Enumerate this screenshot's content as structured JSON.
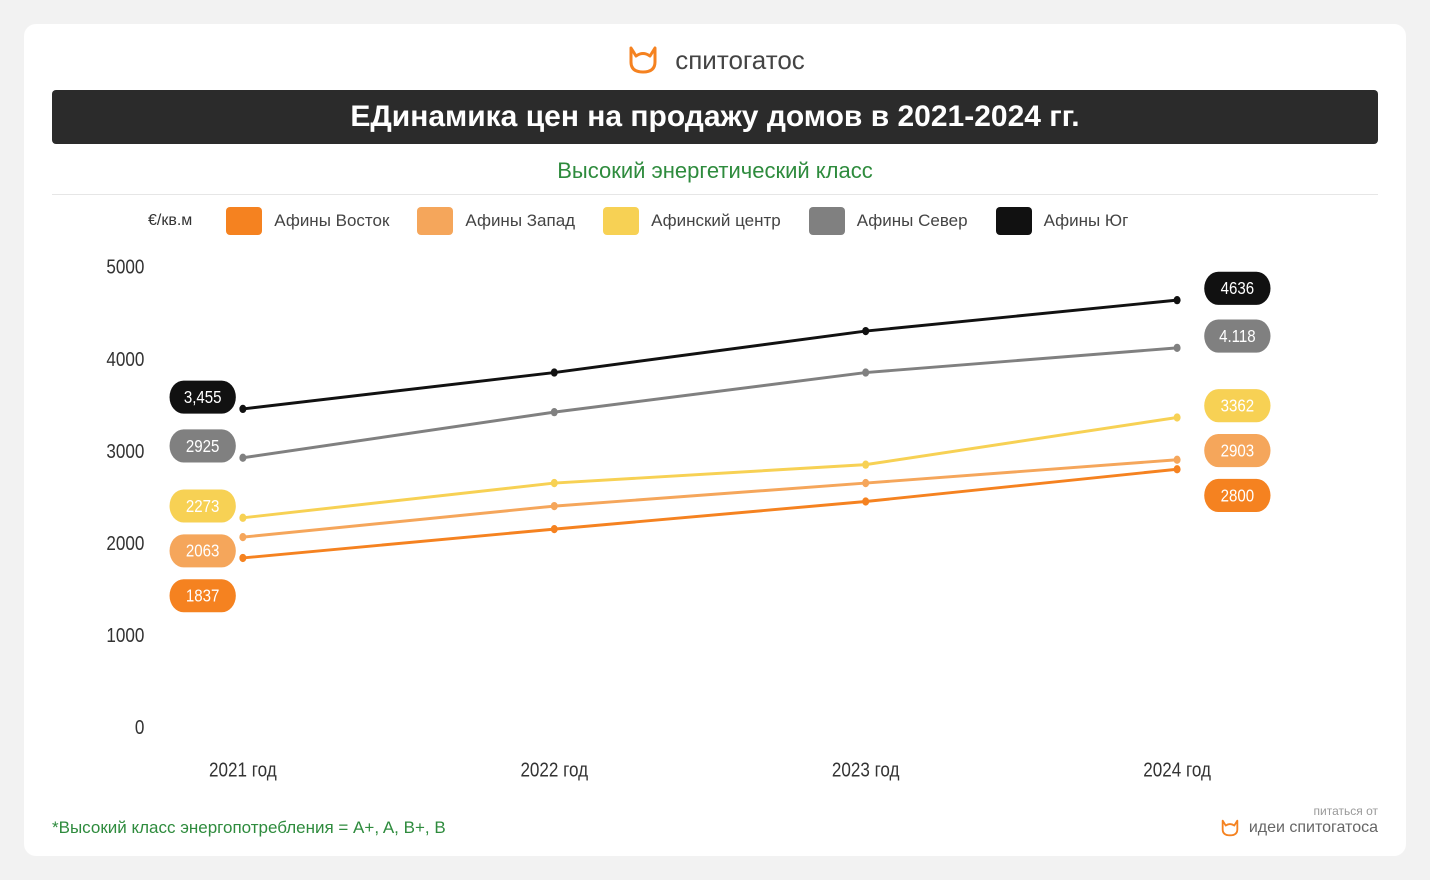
{
  "brand": {
    "name": "спитогатос",
    "icon_color": "#f58220"
  },
  "title": "ЕДинамика цен на продажу домов в 2021-2024 гг.",
  "subtitle": {
    "text": "Высокий энергетический класс",
    "color": "#2e8b3d"
  },
  "title_bar": {
    "bg": "#2b2b2b",
    "text_color": "#ffffff"
  },
  "chart": {
    "type": "line",
    "unit_label": "€/кв.м",
    "categories": [
      "2021 год",
      "2022 год",
      "2023 год",
      "2024 год"
    ],
    "ylim": [
      0,
      5000
    ],
    "yticks": [
      0,
      1000,
      2000,
      3000,
      4000,
      5000
    ],
    "axis_color": "#888888",
    "tick_font_size": 17,
    "tick_color": "#333333",
    "line_width": 2.5,
    "series": [
      {
        "name": "Афины Восток",
        "color": "#f58220",
        "values": [
          1837,
          2150,
          2450,
          2800
        ]
      },
      {
        "name": "Афины Запад",
        "color": "#f5a65b",
        "values": [
          2063,
          2400,
          2650,
          2903
        ]
      },
      {
        "name": "Афинский центр",
        "color": "#f7d154",
        "values": [
          2273,
          2650,
          2850,
          3362
        ]
      },
      {
        "name": "Афины Север",
        "color": "#808080",
        "values": [
          2925,
          3420,
          3850,
          4118
        ]
      },
      {
        "name": "Афины Юг",
        "color": "#111111",
        "values": [
          3455,
          3850,
          4300,
          4636
        ]
      }
    ],
    "start_labels": [
      "1837",
      "2063",
      "2273",
      "2925",
      "3,455"
    ],
    "end_labels": [
      "2800",
      "2903",
      "3362",
      "4.118",
      "4636"
    ],
    "badge_radius": 14,
    "badge_text_color": "#ffffff"
  },
  "footnote": {
    "text": "*Высокий класс энергопотребления = A+, A, B+, B",
    "color": "#2e8b3d"
  },
  "powered": {
    "top": "питаться от",
    "main": "идеи спитогатоса",
    "icon_color": "#f58220"
  }
}
